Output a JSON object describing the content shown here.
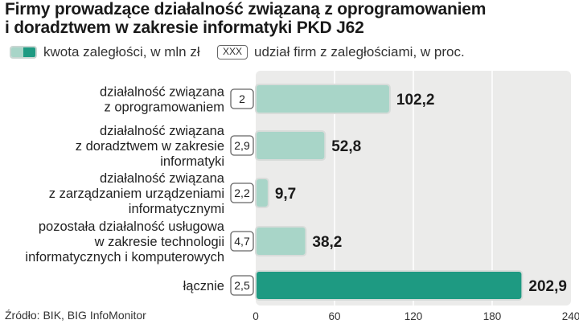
{
  "title_line1": "Firmy prowadzące działalność związaną z oprogramowaniem",
  "title_line2": "i doradztwem w zakresie informatyki  PKD J62",
  "legend": {
    "amount_label": "kwota zaległości, w mln zł",
    "share_box": "XXX",
    "share_label": "udział firm z zaległościami, w proc."
  },
  "source": "Źródło: BIK, BIG InfoMonitor",
  "colors": {
    "bar": "#a8d5c8",
    "bar_total": "#1e9a82",
    "plot_bg": "#ebebea"
  },
  "chart_data": {
    "type": "bar",
    "orientation": "horizontal",
    "title": "Firmy prowadzące działalność związaną z oprogramowaniem i doradztwem w zakresie informatyki  PKD J62",
    "xlabel": "",
    "ylabel": "",
    "xlim": [
      0,
      240
    ],
    "ticks": [
      "0",
      "60",
      "120",
      "180",
      "240"
    ],
    "categories": [
      [
        "działalność związana",
        "z oprogramowaniem"
      ],
      [
        "działalność związana",
        "z doradztwem w zakresie",
        "informatyki"
      ],
      [
        "działalność związana",
        "z zarządzaniem urządzeniami",
        "informatycznymi"
      ],
      [
        "pozostała działalność usługowa",
        "w zakresie technologii",
        "informatycznych i komputerowych"
      ],
      [
        "łącznie"
      ]
    ],
    "values": [
      102.2,
      52.8,
      9.7,
      38.2,
      202.9
    ],
    "value_labels": [
      "102,2",
      "52,8",
      "9,7",
      "38,2",
      "202,9"
    ],
    "share_labels": [
      "2",
      "2,9",
      "2,2",
      "4,7",
      "2,5"
    ],
    "series": [
      {
        "name": "kwota zaległości, w mln zł",
        "values": [
          102.2,
          52.8,
          9.7,
          38.2,
          202.9
        ]
      },
      {
        "name": "udział firm z zaległościami, w proc.",
        "values": [
          2,
          2.9,
          2.2,
          4.7,
          2.5
        ]
      }
    ],
    "total_index": 4,
    "grid": true
  }
}
